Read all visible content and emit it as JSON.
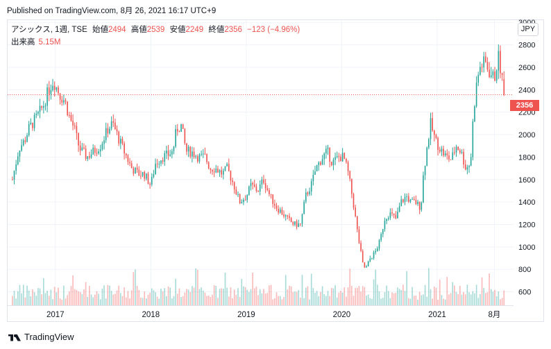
{
  "published": "Published on TradingView.com, 8月 26, 2021 16:17 UTC+9",
  "legend": {
    "symbol": "アシックス, 1週, TSE",
    "open_label": "始値",
    "open": "2494",
    "high_label": "高値",
    "high": "2539",
    "low_label": "安値",
    "low": "2249",
    "close_label": "終値",
    "close": "2356",
    "change": "−123 (−4.96%)",
    "volume_label": "出来高",
    "volume": "5.15M"
  },
  "currency_button": "JPY",
  "brand": "TradingView",
  "colors": {
    "up": "#26a69a",
    "down": "#ef5350",
    "grid": "#f0f3fa",
    "price_line": "#ef5350"
  },
  "chart_data": {
    "type": "candlestick",
    "interval": "1 week",
    "x_ticks": [
      "2017",
      "2018",
      "2019",
      "2020",
      "2021",
      "8月"
    ],
    "y_ticks": [
      600,
      800,
      1000,
      1200,
      1400,
      1600,
      1800,
      2000,
      2200,
      2400,
      2600,
      2800,
      3000
    ],
    "ylim": [
      480,
      3020
    ],
    "last_price": 2356,
    "last_price_label": "2356",
    "grid": true,
    "anchors": [
      [
        2016.55,
        1600
      ],
      [
        2016.62,
        1880
      ],
      [
        2016.68,
        1950
      ],
      [
        2016.72,
        2050
      ],
      [
        2016.8,
        2150
      ],
      [
        2016.87,
        2250
      ],
      [
        2016.93,
        2400
      ],
      [
        2016.98,
        2480
      ],
      [
        2017.05,
        2350
      ],
      [
        2017.1,
        2300
      ],
      [
        2017.15,
        2150
      ],
      [
        2017.2,
        2050
      ],
      [
        2017.25,
        1880
      ],
      [
        2017.33,
        1800
      ],
      [
        2017.4,
        1850
      ],
      [
        2017.47,
        1900
      ],
      [
        2017.55,
        2050
      ],
      [
        2017.6,
        2100
      ],
      [
        2017.67,
        1950
      ],
      [
        2017.72,
        1850
      ],
      [
        2017.8,
        1700
      ],
      [
        2017.87,
        1650
      ],
      [
        2017.93,
        1650
      ],
      [
        2018.0,
        1550
      ],
      [
        2018.05,
        1750
      ],
      [
        2018.12,
        1800
      ],
      [
        2018.18,
        1820
      ],
      [
        2018.23,
        1850
      ],
      [
        2018.27,
        2050
      ],
      [
        2018.32,
        2080
      ],
      [
        2018.37,
        1850
      ],
      [
        2018.42,
        1850
      ],
      [
        2018.5,
        1800
      ],
      [
        2018.57,
        1800
      ],
      [
        2018.62,
        1700
      ],
      [
        2018.68,
        1700
      ],
      [
        2018.75,
        1650
      ],
      [
        2018.8,
        1700
      ],
      [
        2018.87,
        1550
      ],
      [
        2018.93,
        1400
      ],
      [
        2019.0,
        1450
      ],
      [
        2019.05,
        1550
      ],
      [
        2019.12,
        1500
      ],
      [
        2019.18,
        1600
      ],
      [
        2019.25,
        1450
      ],
      [
        2019.32,
        1350
      ],
      [
        2019.38,
        1300
      ],
      [
        2019.43,
        1250
      ],
      [
        2019.5,
        1200
      ],
      [
        2019.57,
        1200
      ],
      [
        2019.62,
        1450
      ],
      [
        2019.68,
        1550
      ],
      [
        2019.73,
        1700
      ],
      [
        2019.8,
        1800
      ],
      [
        2019.85,
        1850
      ],
      [
        2019.9,
        1750
      ],
      [
        2019.97,
        1800
      ],
      [
        2020.02,
        1800
      ],
      [
        2020.07,
        1650
      ],
      [
        2020.12,
        1400
      ],
      [
        2020.17,
        1100
      ],
      [
        2020.22,
        850
      ],
      [
        2020.25,
        800
      ],
      [
        2020.3,
        900
      ],
      [
        2020.35,
        950
      ],
      [
        2020.4,
        1050
      ],
      [
        2020.45,
        1250
      ],
      [
        2020.5,
        1300
      ],
      [
        2020.57,
        1250
      ],
      [
        2020.62,
        1400
      ],
      [
        2020.68,
        1450
      ],
      [
        2020.72,
        1400
      ],
      [
        2020.77,
        1400
      ],
      [
        2020.83,
        1350
      ],
      [
        2020.85,
        1600
      ],
      [
        2020.88,
        1800
      ],
      [
        2020.93,
        2100
      ],
      [
        2020.98,
        1950
      ],
      [
        2021.05,
        1850
      ],
      [
        2021.1,
        1800
      ],
      [
        2021.15,
        1780
      ],
      [
        2021.2,
        1900
      ],
      [
        2021.25,
        1850
      ],
      [
        2021.3,
        1700
      ],
      [
        2021.35,
        1750
      ],
      [
        2021.38,
        2200
      ],
      [
        2021.42,
        2500
      ],
      [
        2021.45,
        2600
      ],
      [
        2021.5,
        2650
      ],
      [
        2021.55,
        2550
      ],
      [
        2021.6,
        2500
      ],
      [
        2021.64,
        2700
      ],
      [
        2021.68,
        2500
      ],
      [
        2021.7,
        2356
      ]
    ]
  }
}
